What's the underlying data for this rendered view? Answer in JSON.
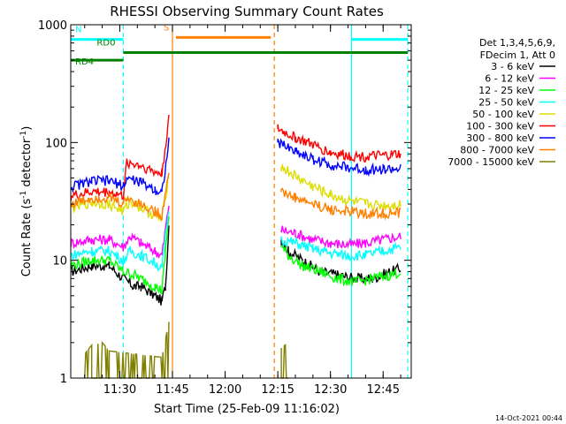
{
  "title": "RHESSI Observing Summary Count Rates",
  "xlabel": "Start Time (25-Feb-09 11:16:02)",
  "ylabel_main": "Count Rate (s",
  "ylabel_sup1": "-1",
  "ylabel_mid": " detector",
  "ylabel_sup2": "-1",
  "ylabel_end": ")",
  "footer_date": "14-Oct-2021 00:44",
  "legend_header": [
    "Det 1,3,4,5,6,9,",
    "FDecim 1, Att 0"
  ],
  "chart_data": {
    "type": "line",
    "title": "RHESSI Observing Summary Count Rates",
    "xlabel": "Start Time (25-Feb-09 11:16:02)",
    "ylabel": "Count Rate (s-1 detector-1)",
    "yscale": "log",
    "xlim": [
      "11:16:02",
      "12:53:00"
    ],
    "ylim": [
      1,
      1000
    ],
    "x_ticks": [
      "11:30",
      "11:45",
      "12:00",
      "12:15",
      "12:30",
      "12:45"
    ],
    "y_ticks": [
      "1",
      "10",
      "100",
      "1000"
    ],
    "legend_position": "right",
    "series": [
      {
        "name": "3 - 6 keV",
        "color": "#000000",
        "pts": [
          [
            "11:16:02",
            8
          ],
          [
            "11:22",
            9
          ],
          [
            "11:27",
            9
          ],
          [
            "11:31",
            7
          ],
          [
            "11:34",
            6
          ],
          [
            "11:36",
            6
          ],
          [
            "11:40",
            5
          ],
          [
            "11:42",
            4.5
          ],
          [
            "11:43",
            6
          ],
          [
            "11:44",
            20
          ],
          [
            "12:16",
            15
          ],
          [
            "12:18",
            12
          ],
          [
            "12:22",
            10
          ],
          [
            "12:27",
            8
          ],
          [
            "12:32",
            7.5
          ],
          [
            "12:37",
            7
          ],
          [
            "12:42",
            7
          ],
          [
            "12:47",
            8
          ],
          [
            "12:50",
            8.5
          ]
        ]
      },
      {
        "name": "6 - 12 keV",
        "color": "#ff00ff",
        "pts": [
          [
            "11:16:02",
            14
          ],
          [
            "11:22",
            15
          ],
          [
            "11:27",
            15
          ],
          [
            "11:31",
            13
          ],
          [
            "11:33",
            16
          ],
          [
            "11:36",
            14
          ],
          [
            "11:40",
            12
          ],
          [
            "11:42",
            11
          ],
          [
            "11:44",
            30
          ],
          [
            "12:16",
            18
          ],
          [
            "12:20",
            17
          ],
          [
            "12:25",
            15
          ],
          [
            "12:30",
            14
          ],
          [
            "12:35",
            13.5
          ],
          [
            "12:40",
            14
          ],
          [
            "12:45",
            15
          ],
          [
            "12:50",
            16
          ]
        ]
      },
      {
        "name": "12 - 25 keV",
        "color": "#00ff00",
        "pts": [
          [
            "11:16:02",
            9
          ],
          [
            "11:22",
            10
          ],
          [
            "11:27",
            10
          ],
          [
            "11:31",
            8
          ],
          [
            "11:34",
            7.5
          ],
          [
            "11:36",
            7
          ],
          [
            "11:40",
            6
          ],
          [
            "11:42",
            5.5
          ],
          [
            "11:44",
            25
          ],
          [
            "12:16",
            13
          ],
          [
            "12:18",
            11
          ],
          [
            "12:22",
            9
          ],
          [
            "12:27",
            8
          ],
          [
            "12:32",
            7
          ],
          [
            "12:37",
            6.5
          ],
          [
            "12:42",
            7
          ],
          [
            "12:47",
            7.5
          ],
          [
            "12:50",
            8
          ]
        ]
      },
      {
        "name": "25 - 50 keV",
        "color": "#00ffff",
        "pts": [
          [
            "11:16:02",
            11
          ],
          [
            "11:22",
            12
          ],
          [
            "11:27",
            12
          ],
          [
            "11:31",
            10
          ],
          [
            "11:33",
            12
          ],
          [
            "11:36",
            11
          ],
          [
            "11:40",
            9.5
          ],
          [
            "11:42",
            8.5
          ],
          [
            "11:44",
            28
          ],
          [
            "12:16",
            15
          ],
          [
            "12:20",
            14
          ],
          [
            "12:25",
            12.5
          ],
          [
            "12:30",
            11.5
          ],
          [
            "12:35",
            11
          ],
          [
            "12:40",
            11
          ],
          [
            "12:45",
            12
          ],
          [
            "12:50",
            13
          ]
        ]
      },
      {
        "name": "50 - 100 keV",
        "color": "#dddd00",
        "pts": [
          [
            "11:16:02",
            28
          ],
          [
            "11:22",
            31
          ],
          [
            "11:27",
            30
          ],
          [
            "11:31",
            26
          ],
          [
            "11:33",
            32
          ],
          [
            "11:36",
            28
          ],
          [
            "11:40",
            24
          ],
          [
            "11:42",
            22
          ],
          [
            "11:44",
            55
          ],
          [
            "12:16",
            62
          ],
          [
            "12:20",
            52
          ],
          [
            "12:25",
            42
          ],
          [
            "12:30",
            36
          ],
          [
            "12:35",
            32
          ],
          [
            "12:40",
            30
          ],
          [
            "12:45",
            29
          ],
          [
            "12:50",
            30
          ]
        ]
      },
      {
        "name": "100 - 300 keV",
        "color": "#ff0000",
        "pts": [
          [
            "11:16:02",
            35
          ],
          [
            "11:22",
            38
          ],
          [
            "11:27",
            38
          ],
          [
            "11:31",
            35
          ],
          [
            "11:32",
            68
          ],
          [
            "11:36",
            64
          ],
          [
            "11:40",
            56
          ],
          [
            "11:42",
            55
          ],
          [
            "11:44",
            160
          ],
          [
            "12:15",
            130
          ],
          [
            "12:20",
            110
          ],
          [
            "12:25",
            95
          ],
          [
            "12:30",
            82
          ],
          [
            "12:35",
            77
          ],
          [
            "12:40",
            76
          ],
          [
            "12:45",
            77
          ],
          [
            "12:50",
            80
          ]
        ]
      },
      {
        "name": "300 - 800 keV",
        "color": "#0000ff",
        "pts": [
          [
            "11:16:02",
            42
          ],
          [
            "11:22",
            47
          ],
          [
            "11:27",
            47
          ],
          [
            "11:31",
            43
          ],
          [
            "11:32",
            50
          ],
          [
            "11:36",
            46
          ],
          [
            "11:40",
            40
          ],
          [
            "11:42",
            38
          ],
          [
            "11:44",
            100
          ],
          [
            "12:15",
            100
          ],
          [
            "12:20",
            85
          ],
          [
            "12:25",
            72
          ],
          [
            "12:30",
            65
          ],
          [
            "12:35",
            61
          ],
          [
            "12:40",
            59
          ],
          [
            "12:45",
            59
          ],
          [
            "12:50",
            60
          ]
        ]
      },
      {
        "name": "800 - 7000 keV",
        "color": "#ff8000",
        "pts": [
          [
            "11:16:02",
            30
          ],
          [
            "11:22",
            34
          ],
          [
            "11:27",
            34
          ],
          [
            "11:31",
            30
          ],
          [
            "11:32",
            34
          ],
          [
            "11:36",
            30
          ],
          [
            "11:40",
            26
          ],
          [
            "11:42",
            24
          ],
          [
            "11:44",
            60
          ],
          [
            "12:16",
            38
          ],
          [
            "12:20",
            34
          ],
          [
            "12:25",
            30
          ],
          [
            "12:30",
            27
          ],
          [
            "12:35",
            26
          ],
          [
            "12:40",
            25
          ],
          [
            "12:45",
            25
          ],
          [
            "12:50",
            25
          ]
        ]
      },
      {
        "name": "7000 - 15000 keV",
        "color": "#808000",
        "pts": [
          [
            "11:20",
            1.6
          ],
          [
            "11:22",
            1.9
          ],
          [
            "11:25",
            2.0
          ],
          [
            "11:27",
            1.7
          ],
          [
            "11:42",
            1.5
          ],
          [
            "11:44",
            3.0
          ],
          [
            "12:16",
            1.8
          ],
          [
            "12:18",
            2.0
          ]
        ]
      }
    ],
    "flags": [
      {
        "label": "N",
        "color": "#00ffff",
        "level": 750,
        "ranges": [
          [
            "11:16:02",
            "11:31"
          ],
          [
            "12:36",
            "12:52"
          ]
        ]
      },
      {
        "label": "S",
        "color": "#ff8000",
        "level": 780,
        "ranges": [
          [
            "11:46",
            "12:13"
          ]
        ]
      },
      {
        "label": "RD0",
        "color": "#008000",
        "level": 580,
        "ranges": [
          [
            "11:31",
            "12:52"
          ]
        ]
      },
      {
        "label": "RD4",
        "color": "#008000",
        "level": 500,
        "ranges": [
          [
            "11:16:02",
            "11:31"
          ]
        ]
      }
    ],
    "vlines": [
      {
        "time": "11:31",
        "color": "#00ffff",
        "style": "dashed"
      },
      {
        "time": "11:45",
        "color": "#ff8000",
        "style": "solid"
      },
      {
        "time": "12:14",
        "color": "#ff8000",
        "style": "dashed"
      },
      {
        "time": "12:36",
        "color": "#00ffff",
        "style": "solid"
      },
      {
        "time": "12:52",
        "color": "#00ffff",
        "style": "dashed"
      }
    ]
  }
}
